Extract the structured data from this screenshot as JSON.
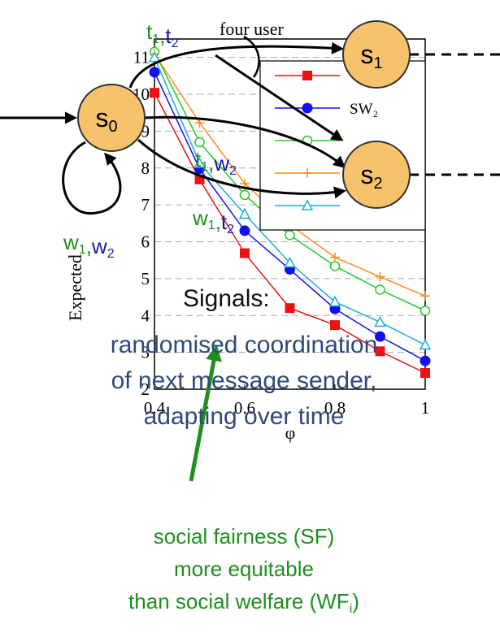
{
  "chart_data": {
    "type": "line",
    "title": "four user",
    "xlabel": "φ",
    "ylabel": "Expected",
    "x": [
      0.4,
      0.5,
      0.6,
      0.7,
      0.8,
      0.9,
      1
    ],
    "xlim": [
      0.4,
      1
    ],
    "xticks": [
      0.4,
      0.6,
      0.8,
      1
    ],
    "ylim": [
      2,
      11.5
    ],
    "yticks": [
      2,
      3,
      4,
      5,
      6,
      7,
      8,
      9,
      10,
      11
    ],
    "grid": true,
    "series": [
      {
        "color": "#ee1111",
        "marker": "square",
        "values": [
          10.04,
          7.69,
          5.69,
          4.2,
          3.74,
          3.03,
          2.44
        ]
      },
      {
        "name": "SW₂",
        "color": "#1111ee",
        "marker": "circle",
        "values": [
          10.6,
          7.98,
          6.3,
          5.25,
          4.18,
          3.43,
          2.77
        ]
      },
      {
        "color": "#22cc22",
        "marker": "open-circle",
        "values": [
          11.15,
          8.7,
          7.27,
          6.18,
          5.34,
          4.7,
          4.13
        ]
      },
      {
        "color": "#ff8c1a",
        "marker": "plus",
        "values": [
          11.1,
          9.23,
          7.58,
          6.46,
          5.58,
          5.05,
          4.53
        ]
      },
      {
        "color": "#22aadd",
        "marker": "triangle",
        "values": [
          11.0,
          8.13,
          6.75,
          5.43,
          4.37,
          3.82,
          3.2
        ]
      }
    ]
  },
  "diagram": {
    "nodes": [
      {
        "label": "s",
        "sub": "0"
      },
      {
        "label": "s",
        "sub": "1"
      },
      {
        "label": "s",
        "sub": "2"
      }
    ],
    "edge_labels": [
      [
        {
          "text": "t",
          "sub": "1",
          "color": "#1f8f1f"
        },
        {
          "text": ",",
          "color": "#1f8f1f"
        },
        {
          "text": "t",
          "sub": "2",
          "color": "#1a1aa0"
        }
      ],
      [
        {
          "text": "t",
          "sub": "1",
          "color": "#1f8f1f"
        },
        {
          "text": ",",
          "color": "#1f8f1f"
        },
        {
          "text": "w",
          "sub": "2",
          "color": "#1a1aa0"
        }
      ],
      [
        {
          "text": "w",
          "sub": "1",
          "color": "#1f8f1f"
        },
        {
          "text": ",",
          "color": "#1f8f1f"
        },
        {
          "text": "t",
          "sub": "2",
          "color": "#1a1aa0"
        }
      ],
      [
        {
          "text": "w",
          "sub": "1",
          "color": "#1f8f1f"
        },
        {
          "text": ",",
          "color": "#1f8f1f"
        },
        {
          "text": "w",
          "sub": "2",
          "color": "#1a1aa0"
        }
      ]
    ]
  },
  "signals": {
    "heading": "Signals:",
    "lines": [
      "randomised coordination",
      "of next message sender,",
      "adapting over time"
    ]
  },
  "note": {
    "lines": [
      "social fairness (SF)",
      "more equitable",
      "than social welfare (WF"
    ],
    "sub": "i",
    "end": ")"
  }
}
